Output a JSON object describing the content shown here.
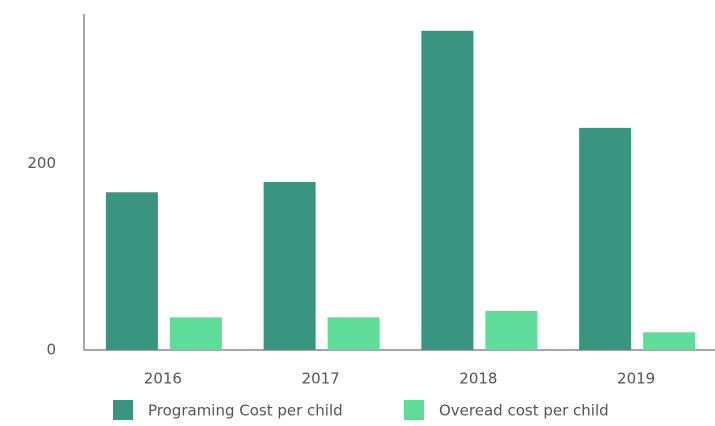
{
  "chart_data": {
    "type": "bar",
    "categories": [
      "2016",
      "2017",
      "2018",
      "2019"
    ],
    "series": [
      {
        "name": "Programing Cost per child",
        "color": "#3a9580",
        "values": [
          169,
          180,
          342,
          238
        ]
      },
      {
        "name": "Overead cost per child",
        "color": "#5edc98",
        "values": [
          35,
          35,
          42,
          19
        ]
      }
    ],
    "ylim": [
      0,
      360
    ],
    "yticks": [
      0,
      200
    ],
    "grid": false
  }
}
